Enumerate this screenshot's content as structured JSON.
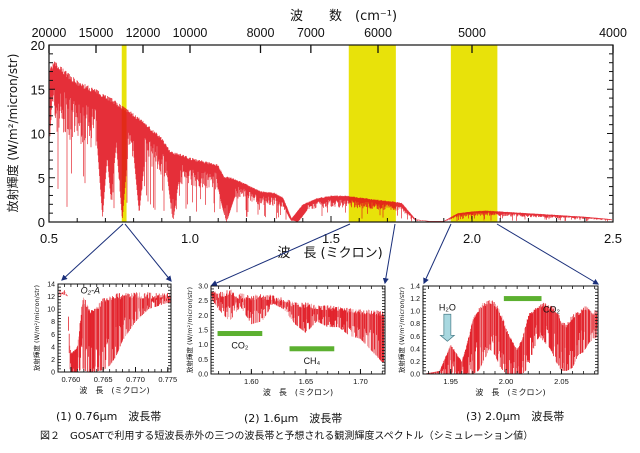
{
  "chart_data": [
    {
      "id": "main",
      "type": "line",
      "title": "",
      "xlabel": "波　長 (ミクロン)",
      "ylabel": "放射輝度 (W/m²/micron/str)",
      "top_axis_label": "波　　数　(cm⁻¹)",
      "xlim": [
        0.5,
        2.5
      ],
      "ylim": [
        0,
        20
      ],
      "x_ticks": [
        "0.5",
        "1.0",
        "1.5",
        "2.0",
        "2.5"
      ],
      "x_tick_values": [
        0.5,
        1.0,
        1.5,
        2.0,
        2.5
      ],
      "y_ticks": [
        "0",
        "5",
        "10",
        "15",
        "20"
      ],
      "y_tick_values": [
        0,
        5,
        10,
        15,
        20
      ],
      "top_ticks": [
        "20000",
        "15000",
        "12000",
        "10000",
        "8000",
        "7000",
        "6000",
        "5000",
        "4000"
      ],
      "top_tick_values": [
        20000,
        15000,
        12000,
        10000,
        8000,
        7000,
        6000,
        5000,
        4000
      ],
      "highlight_bands_um": [
        [
          0.758,
          0.775
        ],
        [
          1.563,
          1.73
        ],
        [
          1.925,
          2.09
        ]
      ],
      "highlight_color": "#e8e20a",
      "series_color": "#e0101a",
      "envelope": {
        "x": [
          0.5,
          0.52,
          0.55,
          0.6,
          0.65,
          0.7,
          0.76,
          0.8,
          0.85,
          0.9,
          0.93,
          0.96,
          1.0,
          1.05,
          1.1,
          1.12,
          1.15,
          1.2,
          1.25,
          1.3,
          1.33,
          1.36,
          1.4,
          1.45,
          1.5,
          1.55,
          1.6,
          1.65,
          1.7,
          1.75,
          1.8,
          1.85,
          1.9,
          1.95,
          2.0,
          2.05,
          2.1,
          2.2,
          2.3,
          2.4,
          2.5
        ],
        "upper": [
          17.5,
          18.2,
          17.4,
          16.0,
          15.3,
          14.5,
          13.2,
          12.3,
          11.0,
          9.6,
          8.0,
          7.8,
          7.3,
          6.9,
          6.5,
          5.2,
          5.0,
          4.3,
          3.5,
          3.3,
          2.8,
          0.4,
          2.0,
          2.7,
          3.0,
          3.0,
          2.8,
          2.6,
          2.4,
          2.2,
          0.3,
          0.1,
          0.1,
          1.0,
          1.2,
          1.3,
          1.2,
          1.0,
          0.8,
          0.6,
          0.3
        ]
      },
      "absorption_bands_um": [
        {
          "center": 0.69,
          "depth_to": 0.5
        },
        {
          "center": 0.72,
          "depth_to": 2.5
        },
        {
          "center": 0.76,
          "depth_to": 0.2
        },
        {
          "center": 0.82,
          "depth_to": 1.0
        },
        {
          "center": 0.94,
          "depth_to": 0.0
        },
        {
          "center": 1.13,
          "depth_to": 0.0
        },
        {
          "center": 1.38,
          "depth_to": 0.0
        },
        {
          "center": 1.87,
          "depth_to": 0.0
        }
      ]
    },
    {
      "id": "o2a",
      "type": "line",
      "caption": "(1) 0.76μm　波長帯",
      "xlabel": "波　長　(ミクロン)",
      "ylabel": "放射輝度 (W/m²/micron/str)",
      "xlim": [
        0.758,
        0.7755
      ],
      "ylim": [
        0,
        14
      ],
      "x_ticks": [
        "0.760",
        "0.765",
        "0.770",
        "0.775"
      ],
      "x_tick_values": [
        0.76,
        0.765,
        0.77,
        0.775
      ],
      "y_ticks": [
        "0",
        "2",
        "4",
        "6",
        "8",
        "10",
        "12",
        "14"
      ],
      "y_tick_values": [
        0,
        2,
        4,
        6,
        8,
        10,
        12,
        14
      ],
      "annotations": [
        {
          "text": "O₂-A",
          "x": 0.7615,
          "y": 12.5
        }
      ],
      "envelope": {
        "x": [
          0.758,
          0.759,
          0.7595,
          0.7598,
          0.76,
          0.761,
          0.7618,
          0.762,
          0.763,
          0.764,
          0.765,
          0.766,
          0.767,
          0.768,
          0.77,
          0.772,
          0.775
        ],
        "upper": [
          13.0,
          13.1,
          12.8,
          4.5,
          3.0,
          4.0,
          11.5,
          12.0,
          10.0,
          10.5,
          11.8,
          12.3,
          12.5,
          12.6,
          12.7,
          12.7,
          12.6
        ],
        "lower": [
          12.5,
          12.3,
          12.0,
          0.5,
          0.0,
          0.0,
          0.5,
          0.2,
          0.0,
          0.1,
          0.3,
          1.0,
          2.5,
          5.0,
          8.0,
          10.0,
          11.0
        ]
      }
    },
    {
      "id": "band16",
      "type": "line",
      "caption": "(2) 1.6μm　波長帯",
      "xlabel": "波　長　(ミクロン)",
      "ylabel": "放射輝度 (W/m²/micron/str)",
      "xlim": [
        1.563,
        1.7225
      ],
      "ylim": [
        0,
        3.0
      ],
      "x_ticks": [
        "1.60",
        "1.65",
        "1.70"
      ],
      "x_tick_values": [
        1.6,
        1.65,
        1.7
      ],
      "y_ticks": [
        "0.0",
        "0.5",
        "1.0",
        "1.5",
        "2.0",
        "2.5",
        "3.0"
      ],
      "y_tick_values": [
        0.0,
        0.5,
        1.0,
        1.5,
        2.0,
        2.5,
        3.0
      ],
      "bars": [
        {
          "label": "CO₂",
          "x0": 1.569,
          "x1": 1.61,
          "y": 1.38
        },
        {
          "label": "CH₄",
          "x0": 1.635,
          "x1": 1.676,
          "y": 0.86
        }
      ],
      "bar_color": "#5cb030",
      "envelope": {
        "x": [
          1.563,
          1.57,
          1.58,
          1.59,
          1.6,
          1.61,
          1.62,
          1.63,
          1.64,
          1.65,
          1.66,
          1.67,
          1.68,
          1.69,
          1.7,
          1.71,
          1.72
        ],
        "upper": [
          2.95,
          2.8,
          2.9,
          2.75,
          2.7,
          2.75,
          2.7,
          2.6,
          2.45,
          2.45,
          2.35,
          2.35,
          2.3,
          2.25,
          2.2,
          2.2,
          2.15
        ],
        "lower": [
          2.6,
          2.2,
          1.8,
          2.3,
          1.7,
          1.8,
          2.4,
          2.2,
          1.7,
          1.4,
          1.8,
          1.6,
          1.6,
          1.3,
          1.2,
          0.8,
          0.4
        ]
      }
    },
    {
      "id": "band20",
      "type": "line",
      "caption": "(3) 2.0μm　波長帯",
      "xlabel": "波　長　(ミクロン)",
      "ylabel": "放射輝度 (W/m²/micron/str)",
      "xlim": [
        1.925,
        2.083
      ],
      "ylim": [
        0,
        1.4
      ],
      "x_ticks": [
        "1.95",
        "2.00",
        "2.05"
      ],
      "x_tick_values": [
        1.95,
        2.0,
        2.05
      ],
      "y_ticks": [
        "0.0",
        "0.2",
        "0.4",
        "0.6",
        "0.8",
        "1.0",
        "1.2",
        "1.4"
      ],
      "y_tick_values": [
        0.0,
        0.2,
        0.4,
        0.6,
        0.8,
        1.0,
        1.2,
        1.4
      ],
      "bars": [
        {
          "label": "CO₂",
          "x0": 1.998,
          "x1": 2.032,
          "y": 1.2
        }
      ],
      "bar_color": "#5cb030",
      "arrow": {
        "label": "H₂O",
        "x": 1.947,
        "y_top": 0.95,
        "y_bottom": 0.52,
        "color": "#a8d8e0"
      },
      "envelope": {
        "x": [
          1.925,
          1.94,
          1.95,
          1.96,
          1.965,
          1.97,
          1.975,
          1.98,
          1.985,
          1.99,
          1.995,
          2.0,
          2.005,
          2.01,
          2.015,
          2.02,
          2.025,
          2.03,
          2.035,
          2.04,
          2.045,
          2.05,
          2.055,
          2.06,
          2.065,
          2.07,
          2.075,
          2.083
        ],
        "upper": [
          0.0,
          0.05,
          0.48,
          0.2,
          0.5,
          0.9,
          1.05,
          1.15,
          1.2,
          1.15,
          1.0,
          0.75,
          0.55,
          0.4,
          0.6,
          0.95,
          1.05,
          1.1,
          1.15,
          1.1,
          1.05,
          0.85,
          0.8,
          0.95,
          1.0,
          1.1,
          1.05,
          1.0
        ],
        "lower": [
          0.0,
          0.0,
          0.0,
          0.0,
          0.0,
          0.0,
          0.05,
          0.2,
          0.4,
          0.3,
          0.1,
          0.0,
          0.0,
          0.0,
          0.0,
          0.1,
          0.4,
          0.6,
          0.5,
          0.4,
          0.2,
          0.05,
          0.05,
          0.1,
          0.3,
          0.35,
          0.5,
          0.6
        ]
      }
    }
  ],
  "figure_caption": "図２　GOSATで利用する短波長赤外の三つの波長帯と予想される観測輝度スペクトル（シミュレーション値）",
  "connector_color": "#1a2f7a"
}
